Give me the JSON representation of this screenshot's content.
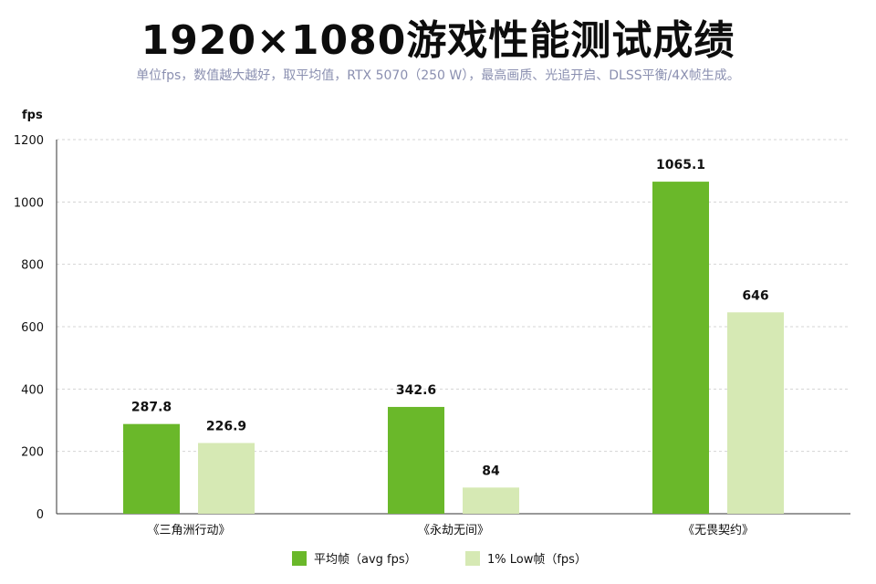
{
  "chart_data": {
    "type": "bar",
    "title": "1920×1080游戏性能测试成绩",
    "subtitle": "单位fps，数值越大越好，取平均值，RTX 5070（250 W），最高画质、光追开启、DLSS平衡/4X帧生成。",
    "ylabel": "fps",
    "xlabel": "",
    "ylim": [
      0,
      1200
    ],
    "yticks": [
      0,
      200,
      400,
      600,
      800,
      1000,
      1200
    ],
    "grid": true,
    "legend_position": "bottom-center",
    "categories": [
      "《三角洲行动》",
      "《永劫无间》",
      "《无畏契约》"
    ],
    "series": [
      {
        "name": "平均帧（avg fps）",
        "color": "#6ab82a",
        "values": [
          287.8,
          342.6,
          1065.1
        ]
      },
      {
        "name": "1% Low帧（fps）",
        "color": "#d6e9b4",
        "values": [
          226.9,
          84,
          646
        ]
      }
    ]
  }
}
